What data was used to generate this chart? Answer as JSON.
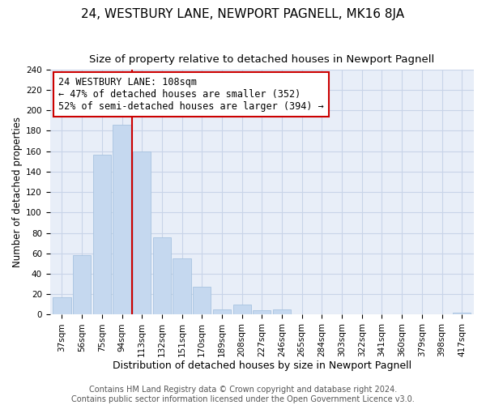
{
  "title": "24, WESTBURY LANE, NEWPORT PAGNELL, MK16 8JA",
  "subtitle": "Size of property relative to detached houses in Newport Pagnell",
  "xlabel": "Distribution of detached houses by size in Newport Pagnell",
  "ylabel": "Number of detached properties",
  "bar_labels": [
    "37sqm",
    "56sqm",
    "75sqm",
    "94sqm",
    "113sqm",
    "132sqm",
    "151sqm",
    "170sqm",
    "189sqm",
    "208sqm",
    "227sqm",
    "246sqm",
    "265sqm",
    "284sqm",
    "303sqm",
    "322sqm",
    "341sqm",
    "360sqm",
    "379sqm",
    "398sqm",
    "417sqm"
  ],
  "bar_values": [
    17,
    58,
    157,
    186,
    160,
    76,
    55,
    27,
    5,
    10,
    4,
    5,
    0,
    0,
    0,
    0,
    0,
    0,
    0,
    0,
    2
  ],
  "bar_color": "#c5d8ef",
  "bar_edge_color": "#a8c4e0",
  "vline_color": "#cc0000",
  "annotation_line1": "24 WESTBURY LANE: 108sqm",
  "annotation_line2": "← 47% of detached houses are smaller (352)",
  "annotation_line3": "52% of semi-detached houses are larger (394) →",
  "annotation_box_edge_color": "#cc0000",
  "annotation_box_bg": "#ffffff",
  "ylim": [
    0,
    240
  ],
  "yticks": [
    0,
    20,
    40,
    60,
    80,
    100,
    120,
    140,
    160,
    180,
    200,
    220,
    240
  ],
  "grid_color": "#c8d4e8",
  "plot_bg_color": "#e8eef8",
  "fig_bg_color": "#ffffff",
  "footer_line1": "Contains HM Land Registry data © Crown copyright and database right 2024.",
  "footer_line2": "Contains public sector information licensed under the Open Government Licence v3.0.",
  "title_fontsize": 11,
  "subtitle_fontsize": 9.5,
  "xlabel_fontsize": 9,
  "ylabel_fontsize": 8.5,
  "tick_fontsize": 7.5,
  "annotation_fontsize": 8.5,
  "footer_fontsize": 7
}
